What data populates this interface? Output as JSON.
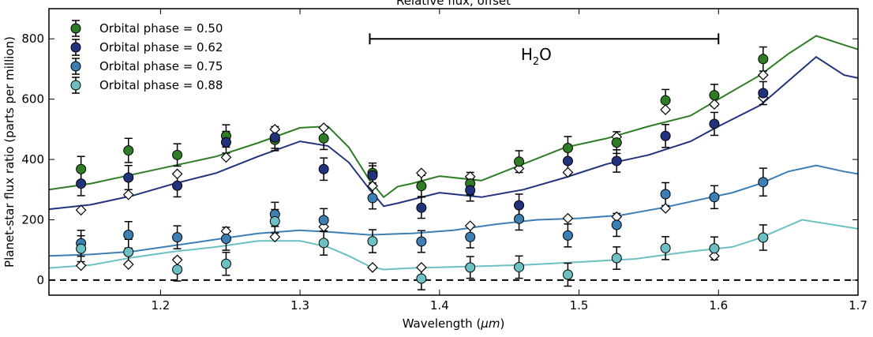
{
  "chart_data": {
    "type": "scatter",
    "title": "Relative flux, offset",
    "xlabel": "Wavelength (",
    "xlabel_unit": "μm",
    "xlabel_close": ")",
    "ylabel": "Planet-star flux ratio (parts per million)",
    "xlim": [
      1.12,
      1.7
    ],
    "ylim": [
      -50,
      900
    ],
    "x_ticks": [
      "1.2",
      "1.3",
      "1.4",
      "1.5",
      "1.6",
      "1.7"
    ],
    "y_ticks": [
      "0",
      "200",
      "400",
      "600",
      "800"
    ],
    "x_tick_values": [
      1.2,
      1.3,
      1.4,
      1.5,
      1.6,
      1.7
    ],
    "y_tick_values": [
      0,
      200,
      400,
      600,
      800
    ],
    "zero_line": 0,
    "grid": false,
    "legend_position": "top-left",
    "annotation": {
      "text": "H",
      "sub": "2",
      "rest": "O",
      "x_range": [
        1.35,
        1.6
      ],
      "y": 800
    },
    "wavelengths": [
      1.143,
      1.177,
      1.212,
      1.247,
      1.282,
      1.317,
      1.352,
      1.387,
      1.422,
      1.457,
      1.492,
      1.527,
      1.562,
      1.597,
      1.632
    ],
    "series": [
      {
        "name": "Orbital phase = 0.50",
        "color": "#2e7d25",
        "values": [
          368,
          430,
          415,
          478,
          465,
          470,
          355,
          312,
          320,
          393,
          438,
          456,
          596,
          613,
          733
        ],
        "errors": [
          42,
          40,
          37,
          37,
          36,
          37,
          33,
          35,
          37,
          36,
          38,
          36,
          36,
          36,
          40
        ],
        "model": [
          [
            1.12,
            300
          ],
          [
            1.15,
            320
          ],
          [
            1.18,
            350
          ],
          [
            1.21,
            380
          ],
          [
            1.24,
            410
          ],
          [
            1.27,
            455
          ],
          [
            1.3,
            505
          ],
          [
            1.32,
            510
          ],
          [
            1.335,
            440
          ],
          [
            1.35,
            330
          ],
          [
            1.36,
            275
          ],
          [
            1.37,
            310
          ],
          [
            1.38,
            320
          ],
          [
            1.4,
            345
          ],
          [
            1.43,
            330
          ],
          [
            1.46,
            385
          ],
          [
            1.49,
            440
          ],
          [
            1.52,
            470
          ],
          [
            1.55,
            510
          ],
          [
            1.58,
            545
          ],
          [
            1.6,
            600
          ],
          [
            1.63,
            680
          ],
          [
            1.65,
            750
          ],
          [
            1.67,
            810
          ],
          [
            1.69,
            780
          ],
          [
            1.7,
            765
          ]
        ]
      },
      {
        "name": "Orbital phase = 0.62",
        "color": "#22337d",
        "values": [
          320,
          340,
          313,
          457,
          473,
          368,
          347,
          240,
          298,
          248,
          395,
          395,
          478,
          518,
          620
        ],
        "errors": [
          40,
          40,
          37,
          36,
          36,
          37,
          32,
          35,
          36,
          37,
          38,
          37,
          38,
          38,
          38
        ],
        "model": [
          [
            1.12,
            235
          ],
          [
            1.15,
            250
          ],
          [
            1.18,
            280
          ],
          [
            1.21,
            320
          ],
          [
            1.24,
            355
          ],
          [
            1.27,
            410
          ],
          [
            1.3,
            460
          ],
          [
            1.32,
            445
          ],
          [
            1.335,
            390
          ],
          [
            1.35,
            300
          ],
          [
            1.36,
            245
          ],
          [
            1.37,
            255
          ],
          [
            1.4,
            290
          ],
          [
            1.43,
            275
          ],
          [
            1.46,
            300
          ],
          [
            1.49,
            340
          ],
          [
            1.52,
            385
          ],
          [
            1.55,
            415
          ],
          [
            1.58,
            460
          ],
          [
            1.6,
            510
          ],
          [
            1.63,
            580
          ],
          [
            1.65,
            660
          ],
          [
            1.67,
            740
          ],
          [
            1.69,
            680
          ],
          [
            1.7,
            670
          ]
        ]
      },
      {
        "name": "Orbital phase = 0.75",
        "color": "#3b7fb4",
        "values": [
          122,
          150,
          142,
          137,
          218,
          199,
          272,
          128,
          143,
          203,
          148,
          183,
          285,
          275,
          325
        ],
        "errors": [
          43,
          44,
          38,
          38,
          40,
          38,
          36,
          36,
          36,
          37,
          38,
          38,
          38,
          38,
          46
        ],
        "model": [
          [
            1.12,
            80
          ],
          [
            1.15,
            85
          ],
          [
            1.18,
            95
          ],
          [
            1.21,
            115
          ],
          [
            1.24,
            135
          ],
          [
            1.27,
            155
          ],
          [
            1.3,
            165
          ],
          [
            1.32,
            160
          ],
          [
            1.35,
            150
          ],
          [
            1.38,
            155
          ],
          [
            1.41,
            165
          ],
          [
            1.44,
            185
          ],
          [
            1.47,
            200
          ],
          [
            1.5,
            205
          ],
          [
            1.53,
            215
          ],
          [
            1.56,
            240
          ],
          [
            1.59,
            270
          ],
          [
            1.61,
            290
          ],
          [
            1.63,
            320
          ],
          [
            1.65,
            360
          ],
          [
            1.67,
            380
          ],
          [
            1.69,
            360
          ],
          [
            1.7,
            352
          ]
        ]
      },
      {
        "name": "Orbital phase = 0.88",
        "color": "#6cbfc2",
        "values": [
          104,
          93,
          35,
          54,
          195,
          123,
          129,
          5,
          42,
          43,
          18,
          73,
          106,
          105,
          141
        ],
        "errors": [
          43,
          42,
          38,
          38,
          39,
          40,
          38,
          37,
          36,
          37,
          38,
          37,
          38,
          38,
          42
        ],
        "model": [
          [
            1.12,
            40
          ],
          [
            1.15,
            50
          ],
          [
            1.18,
            75
          ],
          [
            1.21,
            95
          ],
          [
            1.24,
            110
          ],
          [
            1.27,
            130
          ],
          [
            1.3,
            130
          ],
          [
            1.32,
            110
          ],
          [
            1.335,
            80
          ],
          [
            1.35,
            45
          ],
          [
            1.36,
            35
          ],
          [
            1.38,
            40
          ],
          [
            1.42,
            45
          ],
          [
            1.46,
            50
          ],
          [
            1.5,
            60
          ],
          [
            1.54,
            70
          ],
          [
            1.58,
            95
          ],
          [
            1.61,
            110
          ],
          [
            1.63,
            140
          ],
          [
            1.65,
            180
          ],
          [
            1.66,
            200
          ],
          [
            1.68,
            185
          ],
          [
            1.7,
            170
          ]
        ]
      }
    ],
    "model_binned": {
      "name": "binned model",
      "values": [
        [
          232,
          48
        ],
        [
          283,
          52
        ],
        [
          352,
          67
        ],
        [
          407,
          162
        ],
        [
          500,
          143
        ],
        [
          505,
          177
        ],
        [
          312,
          42
        ],
        [
          355,
          42
        ],
        [
          343,
          180
        ],
        [
          370,
          42
        ],
        [
          357,
          205
        ],
        [
          475,
          210
        ],
        [
          565,
          238
        ],
        [
          583,
          80
        ],
        [
          680,
          605
        ]
      ]
    }
  }
}
